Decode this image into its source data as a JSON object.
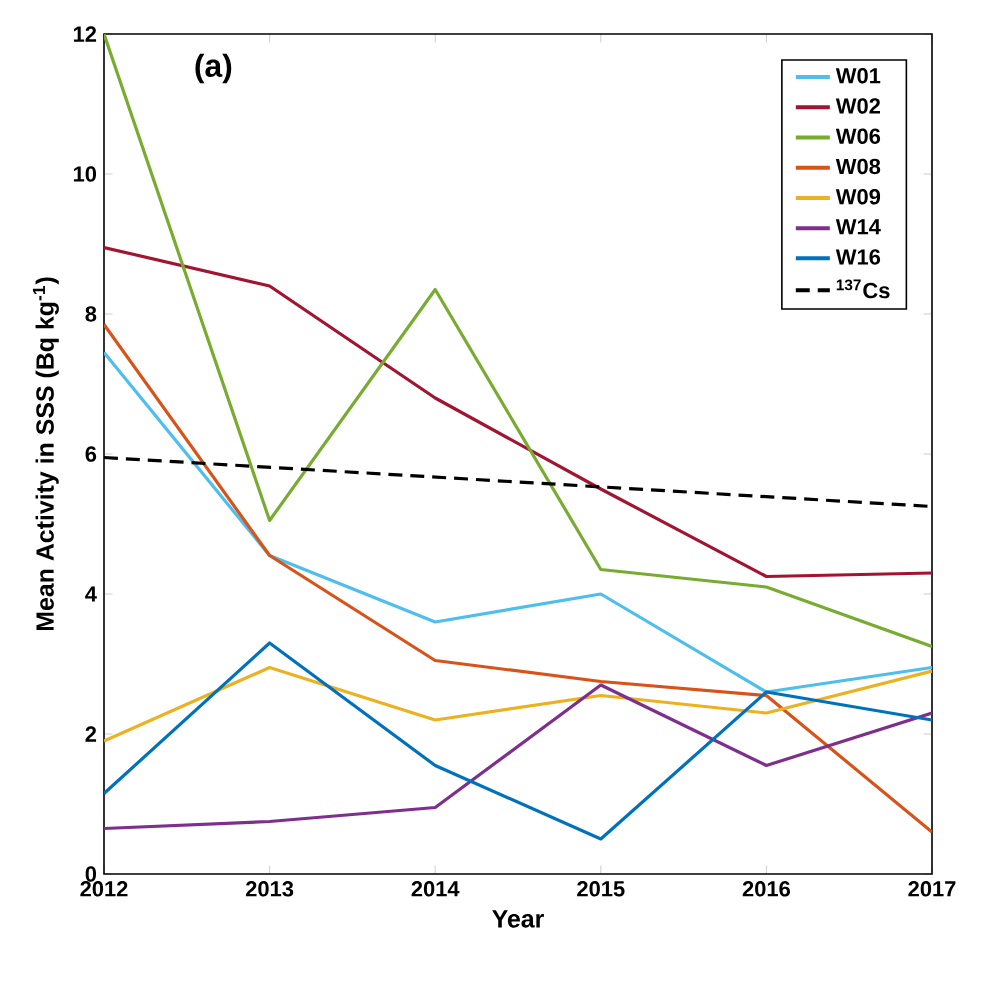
{
  "chart_data": {
    "type": "line",
    "xlabel": "Year",
    "ylabel": "Mean Activity in SSS (Bq kg$^{-1}$)",
    "annotations": [
      "(a)"
    ],
    "x": [
      2012,
      2013,
      2014,
      2015,
      2016,
      2017
    ],
    "xlim": [
      2012,
      2017
    ],
    "xticks": [
      2012,
      2013,
      2014,
      2015,
      2016,
      2017
    ],
    "ylim": [
      0,
      12
    ],
    "yticks": [
      0,
      2,
      4,
      6,
      8,
      10,
      12
    ],
    "legend": "top right",
    "grid": false,
    "marker": "none",
    "series": [
      {
        "name": "W01",
        "color": "#4dbeee",
        "values": [
          7.45,
          4.55,
          3.6,
          4.0,
          2.6,
          2.95
        ]
      },
      {
        "name": "W02",
        "color": "#a2142f",
        "values": [
          8.95,
          8.4,
          6.8,
          5.5,
          4.25,
          4.3
        ]
      },
      {
        "name": "W06",
        "color": "#77ac30",
        "values": [
          12,
          5.05,
          8.35,
          4.35,
          4.1,
          3.25
        ]
      },
      {
        "name": "W08",
        "color": "#d95319",
        "values": [
          7.85,
          4.55,
          3.05,
          2.75,
          2.55,
          0.6
        ]
      },
      {
        "name": "W09",
        "color": "#edb120",
        "values": [
          1.9,
          2.95,
          2.2,
          2.55,
          2.3,
          2.9
        ]
      },
      {
        "name": "W14",
        "color": "#7e2f8e",
        "values": [
          0.65,
          0.75,
          0.95,
          2.7,
          1.55,
          2.3
        ]
      },
      {
        "name": "W16",
        "color": "#0072bd",
        "values": [
          1.15,
          3.3,
          1.55,
          0.5,
          2.6,
          2.2
        ]
      },
      {
        "name": "$^{137}$Cs",
        "color": "#000000",
        "line_style": "dashed",
        "x": [
          2012,
          2017
        ],
        "values": [
          5.95,
          5.25
        ]
      }
    ]
  }
}
